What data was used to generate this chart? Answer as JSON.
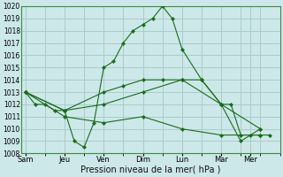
{
  "xlabel": "Pression niveau de la mer( hPa )",
  "ylim": [
    1008,
    1020
  ],
  "yticks": [
    1008,
    1009,
    1010,
    1011,
    1012,
    1013,
    1014,
    1015,
    1016,
    1017,
    1018,
    1019,
    1020
  ],
  "day_labels": [
    "Sam",
    "Jeu",
    "Ven",
    "Dim",
    "Lun",
    "Mar",
    "Mer"
  ],
  "day_positions": [
    0,
    2,
    4,
    6,
    8,
    10,
    11.5
  ],
  "xlim": [
    -0.2,
    13.0
  ],
  "bg_color": "#cce8e8",
  "grid_color": "#aacccc",
  "line_color": "#1a6b1a",
  "lines": [
    {
      "x": [
        0,
        0.5,
        1,
        1.5,
        2,
        2.5,
        3,
        3.5,
        4,
        4.5,
        5,
        5.5,
        6,
        6.5,
        7,
        7.5,
        8,
        9,
        10,
        10.5,
        11,
        11.5,
        12,
        12.5
      ],
      "y": [
        1013,
        1012,
        1012,
        1011.5,
        1011.5,
        1009,
        1008.5,
        1010.5,
        1015,
        1015.5,
        1017,
        1018,
        1018.5,
        1019,
        1020,
        1019,
        1016.5,
        1014,
        1012,
        1012,
        1009.5,
        1009.5,
        1009.5,
        1009.5
      ]
    },
    {
      "x": [
        0,
        2,
        4,
        5,
        6,
        7,
        8,
        9,
        10,
        11,
        12
      ],
      "y": [
        1013,
        1011.5,
        1013,
        1013.5,
        1014,
        1014,
        1014,
        1014,
        1012,
        1009,
        1010
      ]
    },
    {
      "x": [
        0,
        2,
        4,
        6,
        8,
        10,
        12
      ],
      "y": [
        1013,
        1011.5,
        1012,
        1013,
        1014,
        1012,
        1010
      ]
    },
    {
      "x": [
        0,
        2,
        4,
        6,
        8,
        10,
        12
      ],
      "y": [
        1013,
        1011,
        1010.5,
        1011,
        1010,
        1009.5,
        1009.5
      ]
    }
  ]
}
